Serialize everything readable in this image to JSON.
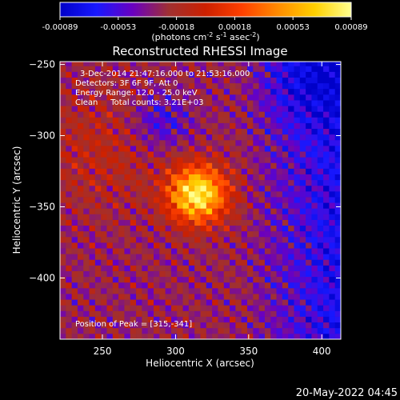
{
  "chart_data": {
    "type": "heatmap",
    "title": "Reconstructed RHESSI Image",
    "xlabel": "Heliocentric X (arcsec)",
    "ylabel": "Heliocentric Y (arcsec)",
    "xlim": [
      221,
      413
    ],
    "ylim": [
      -443,
      -248
    ],
    "x_ticks": [
      250,
      300,
      350,
      400
    ],
    "y_ticks": [
      -250,
      -300,
      -350,
      -400
    ],
    "colorbar": {
      "ticks": [
        "-0.00089",
        "-0.00053",
        "-0.00018",
        "0.00018",
        "0.00053",
        "0.00089"
      ],
      "range": [
        -0.00089,
        0.00089
      ],
      "unit_label_parts": [
        "(photons cm",
        "-2",
        " s",
        "-1",
        " asec",
        "-2",
        ")"
      ],
      "colors": [
        "#0000c8",
        "#1818ff",
        "#6a00c0",
        "#a03030",
        "#cc2000",
        "#ff4000",
        "#ff8c00",
        "#ffd000",
        "#ffff90"
      ]
    },
    "annotations": {
      "line1": "3-Dec-2014 21:47:16.000 to 21:53:16.000",
      "line2": "Detectors: 3F 6F 9F, Att 0",
      "line3": "Energy Range: 12.0 - 25.0 keV",
      "line4": "Clean     Total counts: 3.21E+03",
      "peak": "Position of Peak = [315,-341]"
    },
    "peak": {
      "x": 315,
      "y": -341
    },
    "timestamp": "20-May-2022 04:45"
  }
}
